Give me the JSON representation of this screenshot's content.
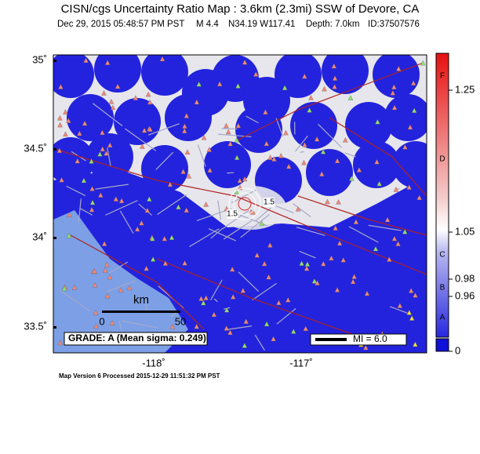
{
  "header": {
    "title": "CISN/cgs Uncertainty Ratio Map : 3.6km (2.3mi) SSW of Devore, CA",
    "date": "Dec 29, 2015 05:48:57 PM PST",
    "magnitude": "M 4.4",
    "location": "N34.19 W117.41",
    "depth": "Depth: 7.0km",
    "id": "ID:37507576"
  },
  "map": {
    "lat_labels": [
      "35˚",
      "34.5˚",
      "34˚",
      "33.5˚"
    ],
    "lon_labels": [
      "-118˚",
      "-117˚"
    ],
    "scale": {
      "title": "km",
      "labels": [
        "0",
        "50"
      ]
    },
    "grade": "GRADE: A (Mean sigma: 0.249)",
    "intensity": "MI = 6.0",
    "contour_labels": [
      "1.5",
      "1.5"
    ]
  },
  "colorbar": {
    "grades": [
      "F",
      "D",
      "C",
      "B",
      "A"
    ],
    "ticks": [
      "1.25",
      "1.05",
      "0.98",
      "0.96",
      "0"
    ]
  },
  "footer": "Map Version 6 Processed 2015-12-29 11:51:32 PM PST"
}
